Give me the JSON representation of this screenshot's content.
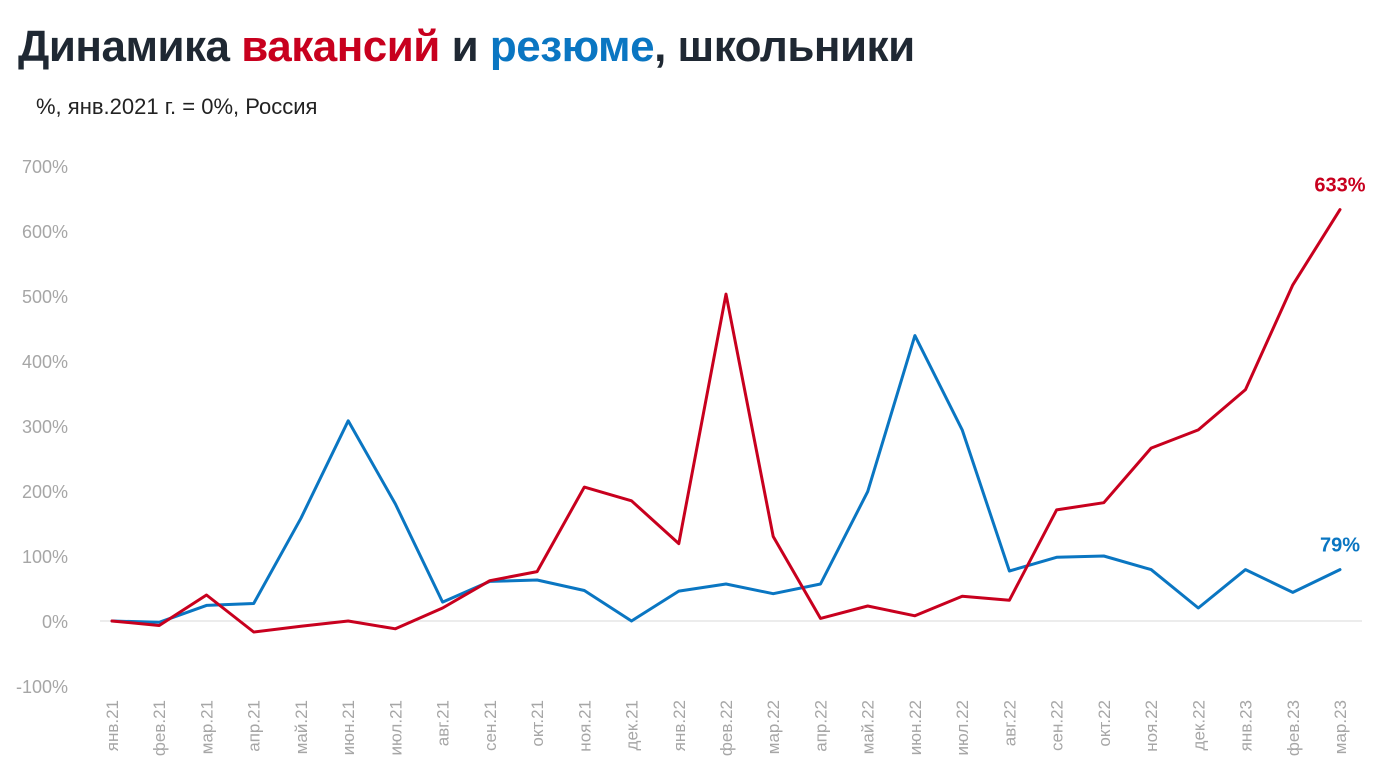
{
  "title": {
    "part1": "Динамика ",
    "part2": "вакансий",
    "part3": " и ",
    "part4": "резюме",
    "part5": ", школьники"
  },
  "subtitle": "%, янв.2021 г. = 0%, Россия",
  "colors": {
    "vacancies": "#c8001e",
    "resumes": "#0a76c2",
    "axis_text": "#a6a6a6",
    "title": "#1f2833",
    "zero_line": "#d9d9d9"
  },
  "chart_data": {
    "type": "line",
    "title": "Динамика вакансий и резюме, школьники",
    "subtitle": "%, янв.2021 г. = 0%, Россия",
    "xlabel": "",
    "ylabel": "",
    "ylim": [
      -100,
      700
    ],
    "yticks": [
      -100,
      0,
      100,
      200,
      300,
      400,
      500,
      600,
      700
    ],
    "ytick_labels": [
      "-100%",
      "0%",
      "100%",
      "200%",
      "300%",
      "400%",
      "500%",
      "600%",
      "700%"
    ],
    "grid": false,
    "categories": [
      "янв.21",
      "фев.21",
      "мар.21",
      "апр.21",
      "май.21",
      "июн.21",
      "июл.21",
      "авг.21",
      "сен.21",
      "окт.21",
      "ноя.21",
      "дек.21",
      "янв.22",
      "фев.22",
      "мар.22",
      "апр.22",
      "май.22",
      "июн.22",
      "июл.22",
      "авг.22",
      "сен.22",
      "окт.22",
      "ноя.22",
      "дек.22",
      "янв.23",
      "фев.23",
      "мар.23"
    ],
    "series": [
      {
        "key": "vacancies",
        "color": "#c8001e",
        "values": [
          0,
          -7,
          40,
          -17,
          -8,
          0,
          -12,
          20,
          62,
          76,
          206,
          185,
          119,
          503,
          130,
          4,
          23,
          8,
          38,
          32,
          171,
          182,
          266,
          294,
          356,
          517,
          633
        ],
        "end_label": "633%"
      },
      {
        "key": "resumes",
        "color": "#0a76c2",
        "values": [
          0,
          -2,
          24,
          27,
          158,
          308,
          180,
          29,
          61,
          63,
          47,
          0,
          46,
          57,
          42,
          57,
          199,
          439,
          294,
          77,
          98,
          100,
          79,
          20,
          79,
          44,
          79
        ],
        "end_label": "79%"
      }
    ]
  }
}
